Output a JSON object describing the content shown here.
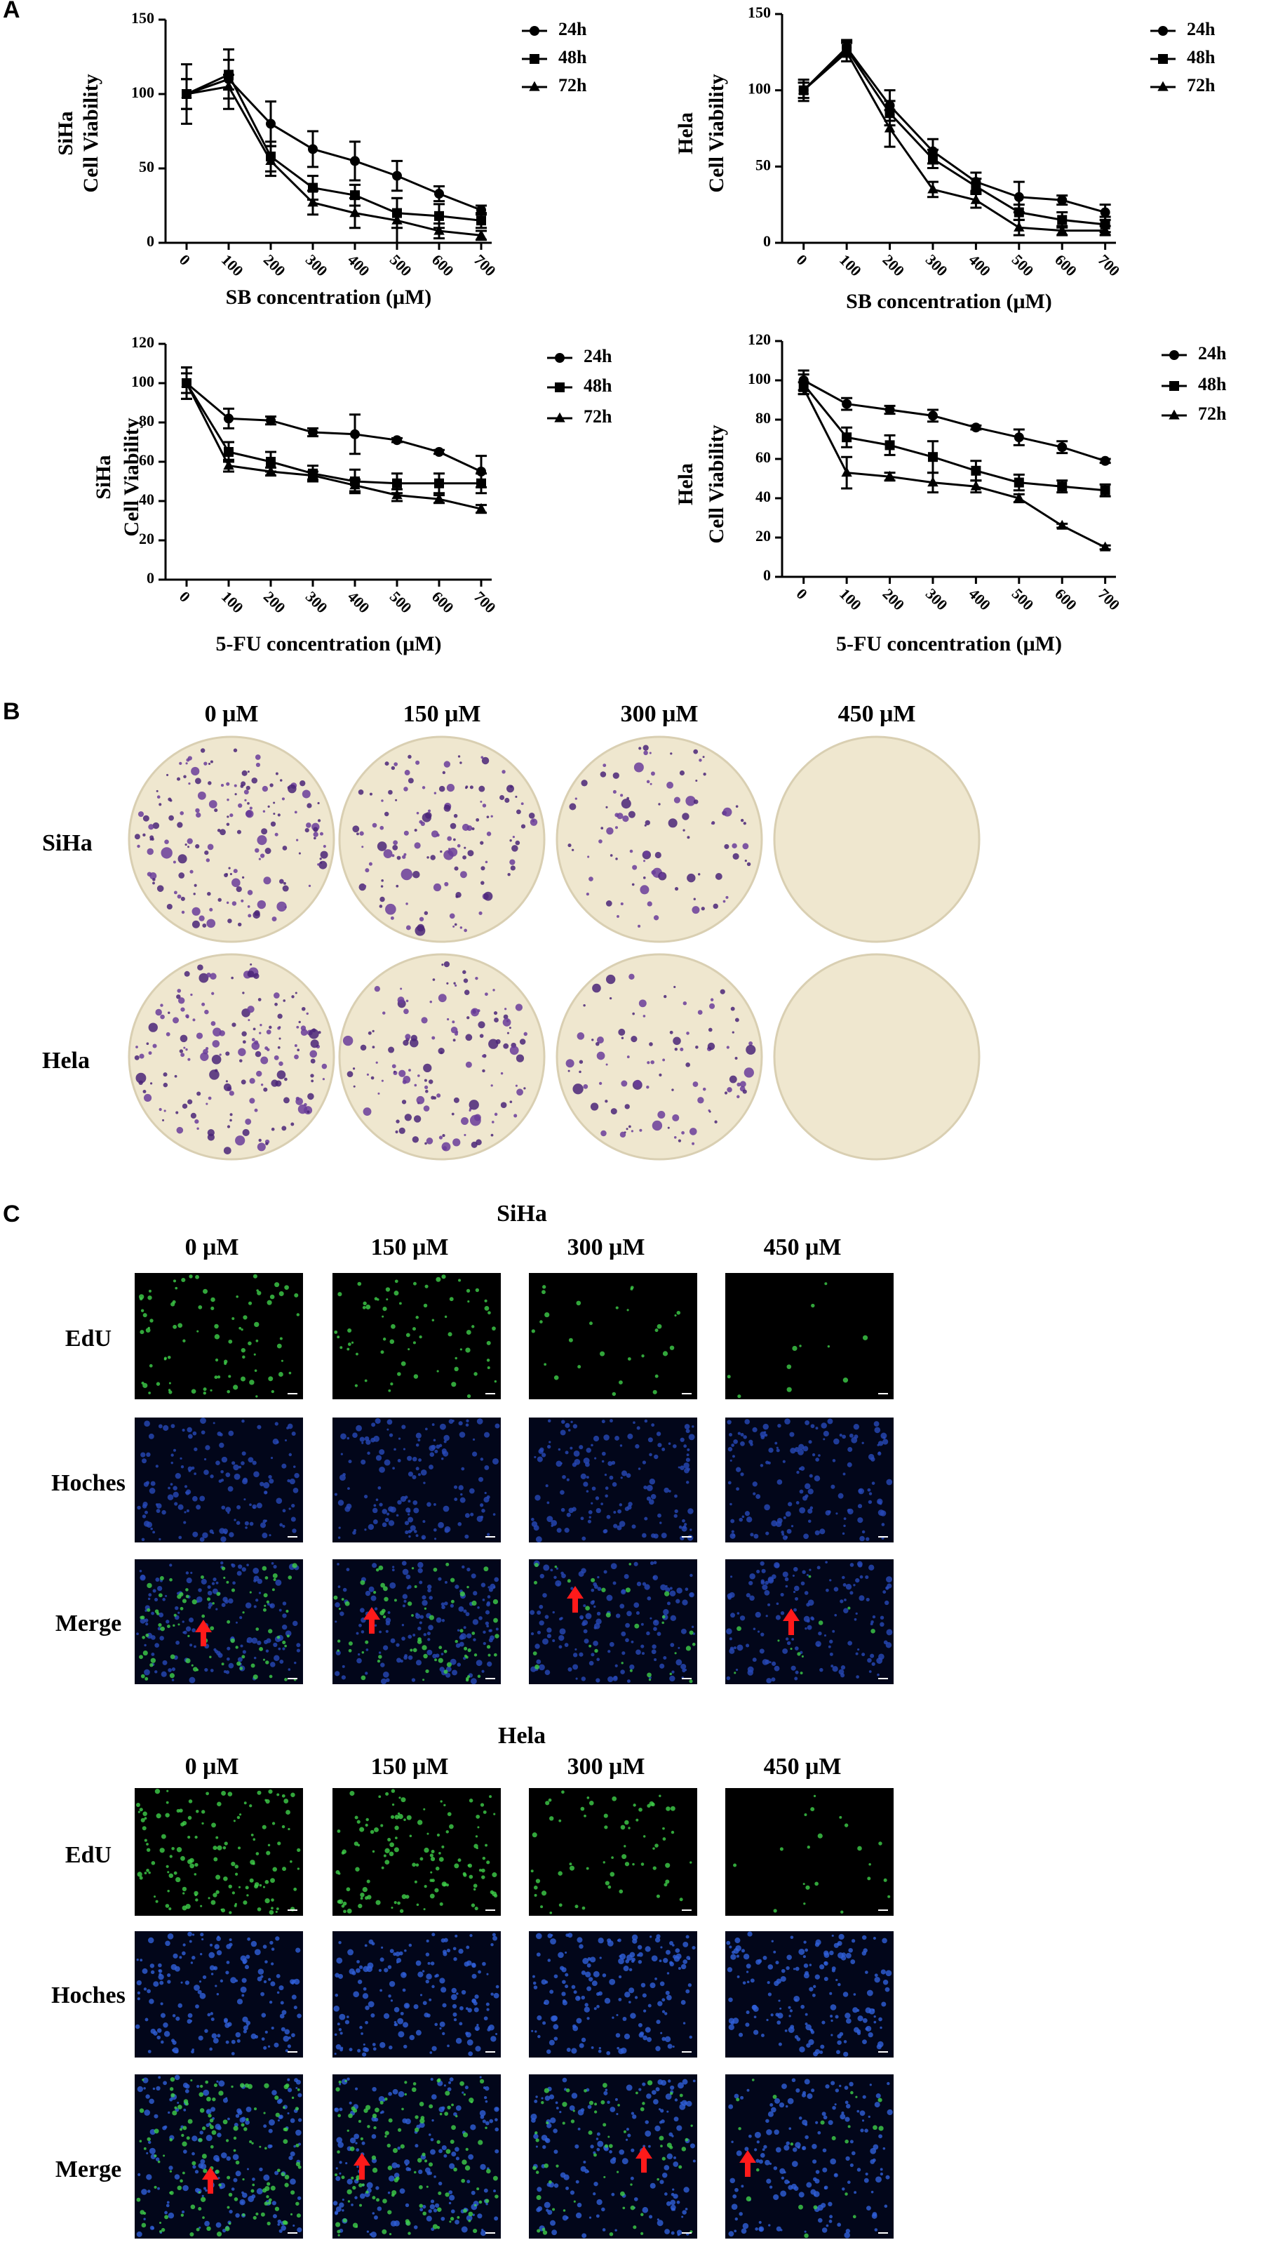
{
  "chart_data": [
    {
      "type": "line",
      "ylabel": [
        "SiHa",
        "Cell Viability"
      ],
      "xlabel": "SB concentration (μM)",
      "x": [
        0,
        100,
        200,
        300,
        400,
        500,
        600,
        700
      ],
      "xlim": [
        -50,
        725
      ],
      "xticks": [
        0,
        100,
        200,
        300,
        400,
        500,
        600,
        700
      ],
      "ylim": [
        0,
        150
      ],
      "yticks": [
        0,
        50,
        100,
        150
      ],
      "legend": "right",
      "series": [
        {
          "name": "24h",
          "marker": "circle",
          "color": "#000000",
          "values": [
            100,
            110,
            80,
            63,
            55,
            45,
            33,
            22
          ],
          "errors": [
            20,
            20,
            15,
            12,
            13,
            10,
            5,
            3
          ]
        },
        {
          "name": "48h",
          "marker": "square",
          "color": "#000000",
          "values": [
            100,
            113,
            58,
            37,
            32,
            20,
            18,
            15
          ],
          "errors": [
            10,
            10,
            10,
            8,
            7,
            10,
            8,
            5
          ]
        },
        {
          "name": "72h",
          "marker": "triangle",
          "color": "#000000",
          "values": [
            100,
            105,
            55,
            27,
            20,
            15,
            8,
            5
          ],
          "errors": [
            10,
            8,
            10,
            8,
            10,
            15,
            5,
            3
          ]
        }
      ]
    },
    {
      "type": "line",
      "ylabel": [
        "Hela",
        "Cell Viability"
      ],
      "xlabel": "SB concentration (μM)",
      "x": [
        0,
        100,
        200,
        300,
        400,
        500,
        600,
        700
      ],
      "xlim": [
        -50,
        725
      ],
      "xticks": [
        0,
        100,
        200,
        300,
        400,
        500,
        600,
        700
      ],
      "ylim": [
        0,
        150
      ],
      "yticks": [
        0,
        50,
        100,
        150
      ],
      "legend": "right",
      "series": [
        {
          "name": "24h",
          "marker": "circle",
          "color": "#000000",
          "values": [
            100,
            128,
            90,
            60,
            40,
            30,
            28,
            20
          ],
          "errors": [
            7,
            5,
            10,
            8,
            6,
            10,
            3,
            5
          ]
        },
        {
          "name": "48h",
          "marker": "square",
          "color": "#000000",
          "values": [
            100,
            127,
            85,
            55,
            37,
            20,
            15,
            12
          ],
          "errors": [
            5,
            5,
            8,
            6,
            5,
            5,
            5,
            5
          ]
        },
        {
          "name": "72h",
          "marker": "triangle",
          "color": "#000000",
          "values": [
            100,
            125,
            75,
            35,
            28,
            10,
            8,
            8
          ],
          "errors": [
            5,
            6,
            12,
            5,
            5,
            5,
            3,
            3
          ]
        }
      ]
    },
    {
      "type": "line",
      "ylabel": [
        "SiHa",
        "Cell Viability"
      ],
      "xlabel": "5-FU concentration (μM)",
      "x": [
        0,
        100,
        200,
        300,
        400,
        500,
        600,
        700
      ],
      "xlim": [
        -50,
        725
      ],
      "xticks": [
        0,
        100,
        200,
        300,
        400,
        500,
        600,
        700
      ],
      "ylim": [
        0,
        120
      ],
      "yticks": [
        0,
        20,
        40,
        60,
        80,
        100,
        120
      ],
      "legend": "right",
      "series": [
        {
          "name": "24h",
          "marker": "circle",
          "color": "#000000",
          "values": [
            100,
            82,
            81,
            75,
            74,
            71,
            65,
            55
          ],
          "errors": [
            8,
            5,
            2,
            2,
            10,
            1,
            1,
            8
          ]
        },
        {
          "name": "48h",
          "marker": "square",
          "color": "#000000",
          "values": [
            100,
            65,
            60,
            54,
            50,
            49,
            49,
            49
          ],
          "errors": [
            8,
            5,
            5,
            4,
            6,
            5,
            5,
            5
          ]
        },
        {
          "name": "72h",
          "marker": "triangle",
          "color": "#000000",
          "values": [
            100,
            58,
            55,
            53,
            48,
            43,
            41,
            36
          ],
          "errors": [
            5,
            3,
            2,
            2,
            3,
            3,
            2,
            2
          ]
        }
      ]
    },
    {
      "type": "line",
      "ylabel": [
        "Hela",
        "Cell Viability"
      ],
      "xlabel": "5-FU concentration (μM)",
      "x": [
        0,
        100,
        200,
        300,
        400,
        500,
        600,
        700
      ],
      "xlim": [
        -50,
        725
      ],
      "xticks": [
        0,
        100,
        200,
        300,
        400,
        500,
        600,
        700
      ],
      "ylim": [
        0,
        120
      ],
      "yticks": [
        0,
        20,
        40,
        60,
        80,
        100,
        120
      ],
      "legend": "right",
      "series": [
        {
          "name": "24h",
          "marker": "circle",
          "color": "#000000",
          "values": [
            100,
            88,
            85,
            82,
            76,
            71,
            66,
            59
          ],
          "errors": [
            5,
            3,
            2,
            3,
            1,
            4,
            3,
            1
          ]
        },
        {
          "name": "48h",
          "marker": "square",
          "color": "#000000",
          "values": [
            98,
            71,
            67,
            61,
            54,
            48,
            46,
            44
          ],
          "errors": [
            5,
            5,
            5,
            8,
            5,
            4,
            3,
            3
          ]
        },
        {
          "name": "72h",
          "marker": "triangle",
          "color": "#000000",
          "values": [
            96,
            53,
            51,
            48,
            46,
            40,
            26,
            15
          ],
          "errors": [
            3,
            8,
            2,
            5,
            3,
            2,
            1,
            1
          ]
        }
      ]
    }
  ],
  "panel_labels": [
    "A",
    "B",
    "C"
  ],
  "colony_assay": {
    "columns": [
      "0 μM",
      "150 μM",
      "300 μM",
      "450 μM"
    ],
    "rows": [
      "SiHa",
      "Hela"
    ]
  },
  "edu_assay": [
    {
      "title": "SiHa",
      "columns": [
        "0 μM",
        "150 μM",
        "300 μM",
        "450 μM"
      ],
      "rows": [
        "EdU",
        "Hoches",
        "Merge"
      ]
    },
    {
      "title": "Hela",
      "columns": [
        "0 μM",
        "150 μM",
        "300 μM",
        "450 μM"
      ],
      "rows": [
        "EdU",
        "Hoches",
        "Merge"
      ]
    }
  ]
}
